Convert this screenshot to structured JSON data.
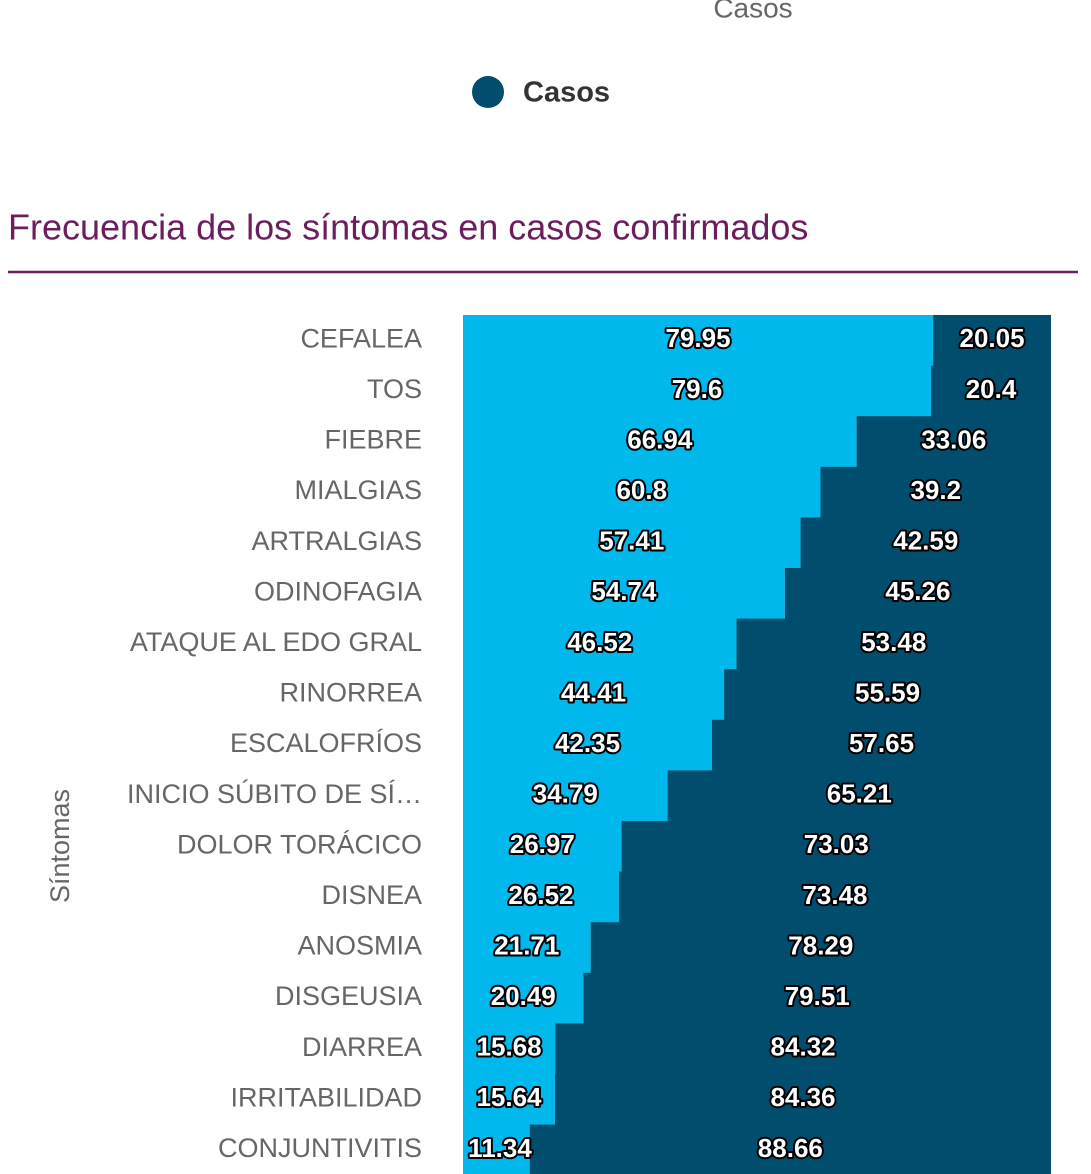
{
  "previous_chart": {
    "x_axis_label": "Casos",
    "legend": [
      {
        "name": "Casos",
        "color": "#004d6e"
      }
    ]
  },
  "chart_data": {
    "type": "stacked_bar_horizontal",
    "title": "Frecuencia de los síntomas en casos confirmados",
    "y_axis_label": "Síntomas",
    "categories": [
      "CEFALEA",
      "TOS",
      "FIEBRE",
      "MIALGIAS",
      "ARTRALGIAS",
      "ODINOFAGIA",
      "ATAQUE AL EDO GRAL",
      "RINORREA",
      "ESCALOFRÍOS",
      "INICIO SÚBITO DE SÍ…",
      "DOLOR TORÁCICO",
      "DISNEA",
      "ANOSMIA",
      "DISGEUSIA",
      "DIARREA",
      "IRRITABILIDAD",
      "CONJUNTIVITIS"
    ],
    "series": [
      {
        "color": "#00b8ec",
        "values": [
          79.95,
          79.6,
          66.94,
          60.8,
          57.41,
          54.74,
          46.52,
          44.41,
          42.35,
          34.79,
          26.97,
          26.52,
          21.71,
          20.49,
          15.68,
          15.64,
          11.34
        ]
      },
      {
        "color": "#004d6e",
        "values": [
          20.05,
          20.4,
          33.06,
          39.2,
          42.59,
          45.26,
          53.48,
          55.59,
          57.65,
          65.21,
          73.03,
          73.48,
          78.29,
          79.51,
          84.32,
          84.36,
          88.66
        ]
      }
    ],
    "xlim": [
      0,
      100
    ]
  }
}
